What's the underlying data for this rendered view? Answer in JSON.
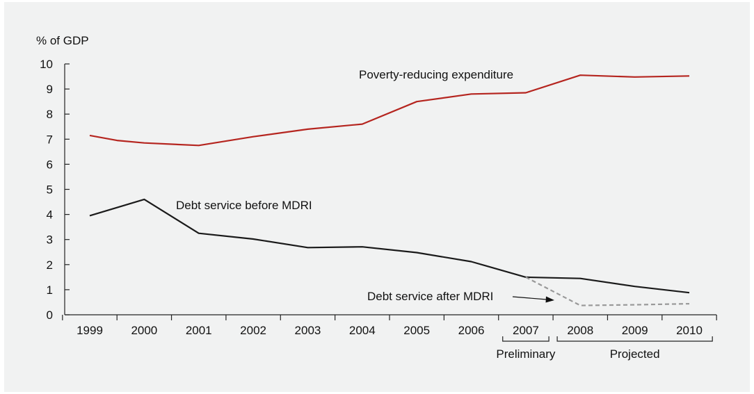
{
  "chart_data": {
    "type": "line",
    "ylabel": "% of GDP",
    "ylim": [
      0,
      10
    ],
    "yticks": [
      0,
      1,
      2,
      3,
      4,
      5,
      6,
      7,
      8,
      9,
      10
    ],
    "categories": [
      "1999",
      "2000",
      "2001",
      "2002",
      "2003",
      "2004",
      "2005",
      "2006",
      "2007",
      "2008",
      "2009",
      "2010"
    ],
    "series": [
      {
        "name": "Poverty-reducing expenditure",
        "color": "#b5251f",
        "style": "solid",
        "points": [
          [
            1999,
            7.15
          ],
          [
            1999.5,
            6.95
          ],
          [
            2000,
            6.85
          ],
          [
            2001,
            6.75
          ],
          [
            2002,
            7.1
          ],
          [
            2003,
            7.4
          ],
          [
            2004,
            7.6
          ],
          [
            2005,
            8.5
          ],
          [
            2006,
            8.8
          ],
          [
            2007,
            8.85
          ],
          [
            2008,
            9.55
          ],
          [
            2009,
            9.48
          ],
          [
            2010,
            9.52
          ]
        ]
      },
      {
        "name": "Debt service before MDRI",
        "color": "#1a1a1a",
        "style": "solid",
        "points": [
          [
            1999,
            3.95
          ],
          [
            2000,
            4.6
          ],
          [
            2001,
            3.25
          ],
          [
            2002,
            3.02
          ],
          [
            2003,
            2.68
          ],
          [
            2004,
            2.71
          ],
          [
            2005,
            2.48
          ],
          [
            2006,
            2.12
          ],
          [
            2007,
            1.5
          ],
          [
            2008,
            1.45
          ],
          [
            2009,
            1.13
          ],
          [
            2010,
            0.88
          ]
        ]
      },
      {
        "name": "Debt service after MDRI",
        "color": "#999999",
        "style": "dashed",
        "points": [
          [
            2007,
            1.5
          ],
          [
            2008,
            0.37
          ],
          [
            2009,
            0.4
          ],
          [
            2010,
            0.44
          ]
        ]
      }
    ],
    "annotations": {
      "poverty": "Poverty-reducing expenditure",
      "before": "Debt service before MDRI",
      "after": "Debt service after MDRI"
    },
    "brackets": [
      {
        "label": "Preliminary",
        "from": "2007",
        "to": "2007"
      },
      {
        "label": "Projected",
        "from": "2008",
        "to": "2010"
      }
    ]
  }
}
